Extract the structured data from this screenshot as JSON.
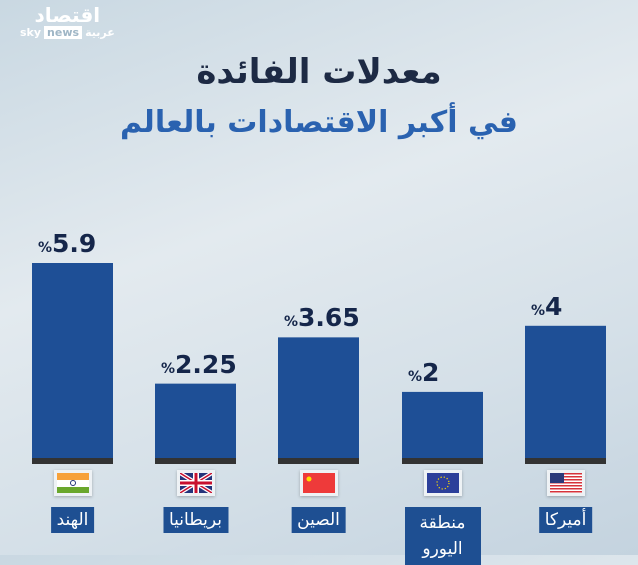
{
  "logo": {
    "arabic": "اقتصاد",
    "sky": "sky",
    "news": "news",
    "arabiya": "عربية"
  },
  "chart_data": {
    "type": "bar",
    "title": "معدلات الفائدة",
    "subtitle": "في أكبر الاقتصادات بالعالم",
    "categories": [
      "الهند",
      "بريطانيا",
      "الصين",
      "منطقة اليورو",
      "أميركا"
    ],
    "values": [
      5.9,
      2.25,
      3.65,
      2,
      4
    ],
    "data_labels": [
      "5.9",
      "2.25",
      "3.65",
      "2",
      "4"
    ],
    "unit": "%",
    "flags": [
      "india-flag",
      "uk-flag",
      "china-flag",
      "eu-flag",
      "us-flag"
    ],
    "bar_color": "#1e4f96",
    "ylim": [
      0,
      5.9
    ]
  }
}
